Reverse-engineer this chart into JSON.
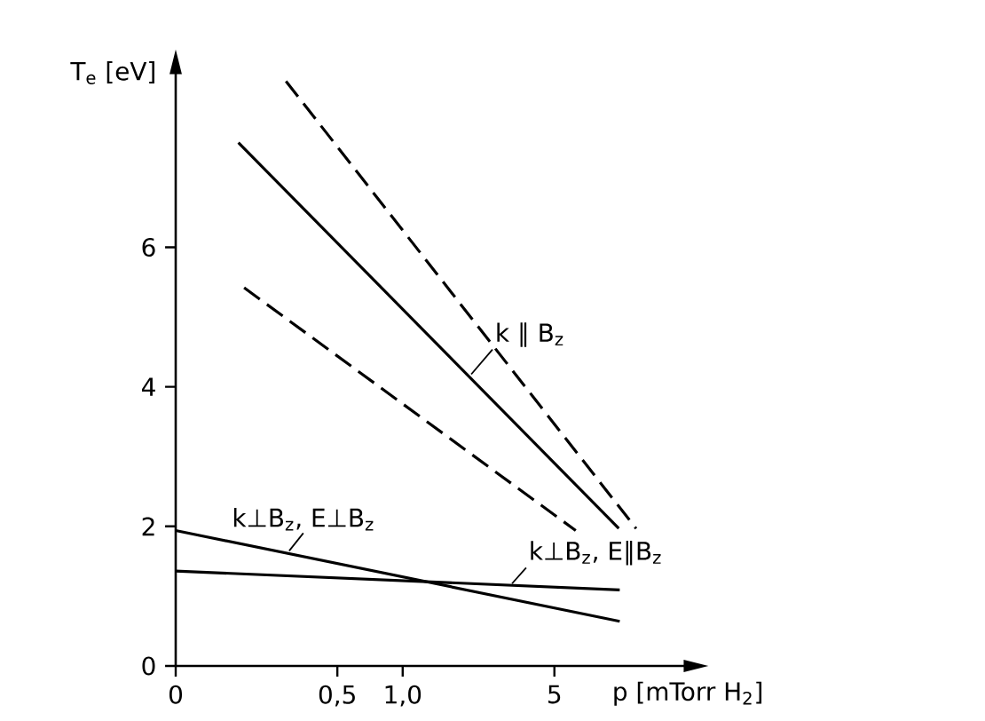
{
  "chart_data": {
    "type": "line",
    "xlabel": "p [mTorr H$_{2}$]",
    "ylabel": "T$_{e}$ [eV]",
    "log": "x",
    "xlim": [
      0.09,
      20
    ],
    "ylim": [
      0,
      8.5
    ],
    "xticks": [
      {
        "value": 0.09,
        "label": "0"
      },
      {
        "value": 0.5,
        "label": "0,5"
      },
      {
        "value": 1,
        "label": "1,0"
      },
      5
    ],
    "yticks": [
      0,
      2,
      4,
      6
    ],
    "series": [
      {
        "color": "#000000",
        "line_style": "dashed",
        "x": [
          0.29,
          11.9
        ],
        "values": [
          8.38,
          1.97
        ]
      },
      {
        "color": "#000000",
        "line_style": "solid",
        "x": [
          0.175,
          9.9
        ],
        "values": [
          7.5,
          1.97
        ]
      },
      {
        "color": "#000000",
        "line_style": "dashed",
        "x": [
          0.186,
          6.27
        ],
        "values": [
          5.42,
          1.94
        ]
      },
      {
        "color": "#000000",
        "line_style": "solid",
        "x": [
          0.09,
          10.0
        ],
        "values": [
          1.94,
          0.64
        ]
      },
      {
        "color": "#000000",
        "line_style": "solid",
        "x": [
          0.09,
          10.0
        ],
        "values": [
          1.36,
          1.09
        ]
      }
    ],
    "annotations": [
      {
        "text": "k ∥ B$_{z}$",
        "x": 2.07,
        "y": 4.18
      },
      {
        "text": "k⊥B$_{z}$, E⊥B$_{z}$",
        "x": 0.3,
        "y": 1.65
      },
      {
        "text": "k⊥B$_{z}$, E∥B$_{z}$",
        "x": 3.19,
        "y": 1.18
      }
    ]
  }
}
